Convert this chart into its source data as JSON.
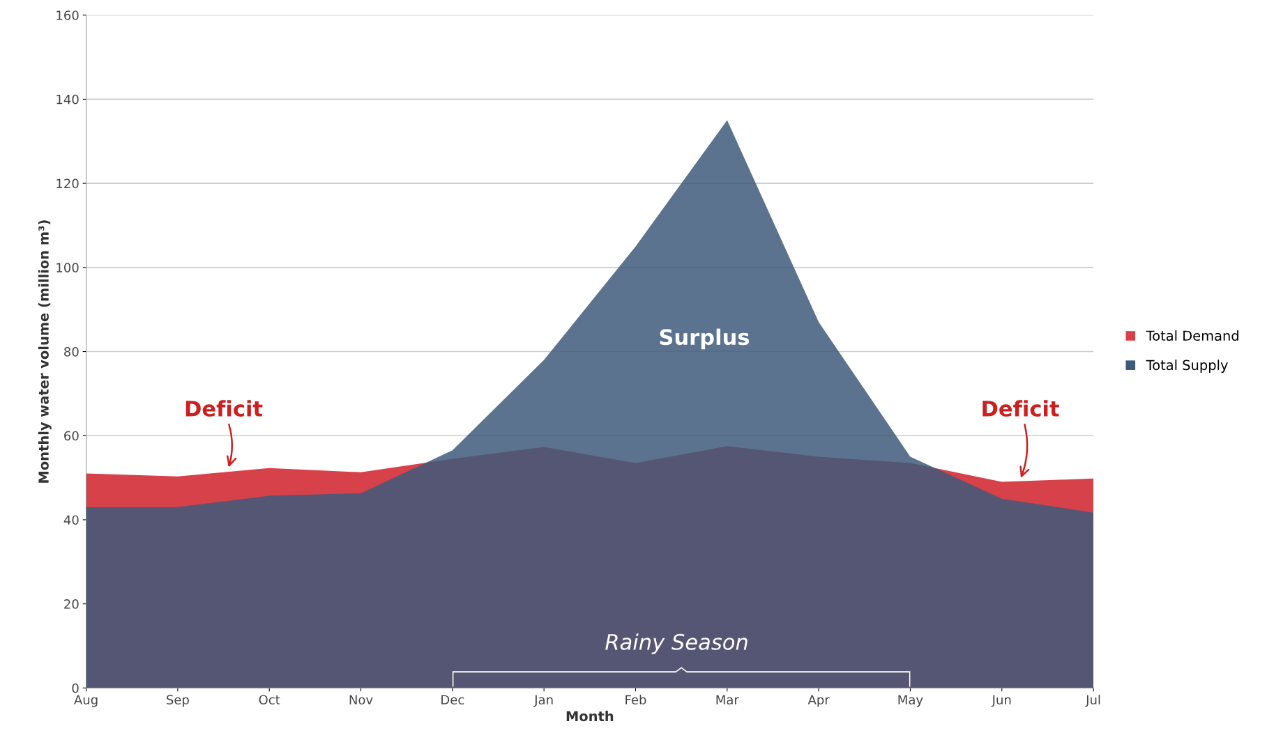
{
  "chart_data": {
    "type": "area",
    "xlabel": "Month",
    "ylabel": "Monthly water volume (million m³)",
    "categories": [
      "Aug",
      "Sep",
      "Oct",
      "Nov",
      "Dec",
      "Jan",
      "Feb",
      "Mar",
      "Apr",
      "May",
      "Jun",
      "Jul"
    ],
    "series": [
      {
        "name": "Total Demand",
        "color": "#d6414a",
        "values": [
          51,
          50.3,
          52.3,
          51.3,
          54.5,
          57.3,
          53.5,
          57.5,
          55,
          53.5,
          49,
          49.8
        ]
      },
      {
        "name": "Total Supply",
        "color": "#3e5a7a",
        "values": [
          43,
          43,
          45.7,
          46.3,
          56.5,
          78,
          105,
          135,
          87,
          55,
          45,
          41.7
        ]
      }
    ],
    "ylim": [
      0,
      160
    ],
    "yticks": [
      0,
      20,
      40,
      60,
      80,
      100,
      120,
      140,
      160
    ],
    "grid": "y",
    "legend": "right",
    "annotations": [
      "Deficit",
      "Deficit",
      "Surplus",
      "Rainy Season"
    ]
  }
}
